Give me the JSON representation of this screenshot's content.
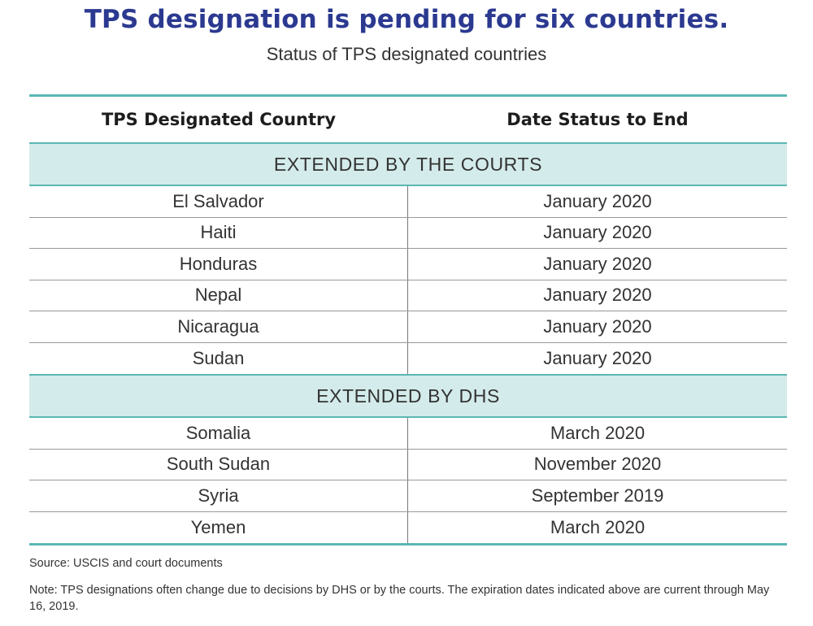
{
  "chart_data": {
    "type": "table",
    "title": "TPS designation is pending for six countries.",
    "subtitle": "Status of TPS designated countries",
    "columns": [
      "TPS Designated Country",
      "Date Status to End"
    ],
    "sections": [
      {
        "label": "EXTENDED BY THE COURTS",
        "rows": [
          {
            "country": "El Salvador",
            "date": "January 2020"
          },
          {
            "country": "Haiti",
            "date": "January 2020"
          },
          {
            "country": "Honduras",
            "date": "January 2020"
          },
          {
            "country": "Nepal",
            "date": "January 2020"
          },
          {
            "country": "Nicaragua",
            "date": "January 2020"
          },
          {
            "country": "Sudan",
            "date": "January 2020"
          }
        ]
      },
      {
        "label": "EXTENDED BY DHS",
        "rows": [
          {
            "country": "Somalia",
            "date": "March 2020"
          },
          {
            "country": "South Sudan",
            "date": "November 2020"
          },
          {
            "country": "Syria",
            "date": "September 2019"
          },
          {
            "country": "Yemen",
            "date": "March 2020"
          }
        ]
      }
    ],
    "source": "Source: USCIS and court documents",
    "note": "Note: TPS designations often change due to decisions by DHS or by the courts. The expiration dates indicated above are current through May 16, 2019."
  },
  "colors": {
    "title": "#2b3990",
    "accent_rule": "#5bb7b3",
    "section_fill": "#d3ebea"
  }
}
